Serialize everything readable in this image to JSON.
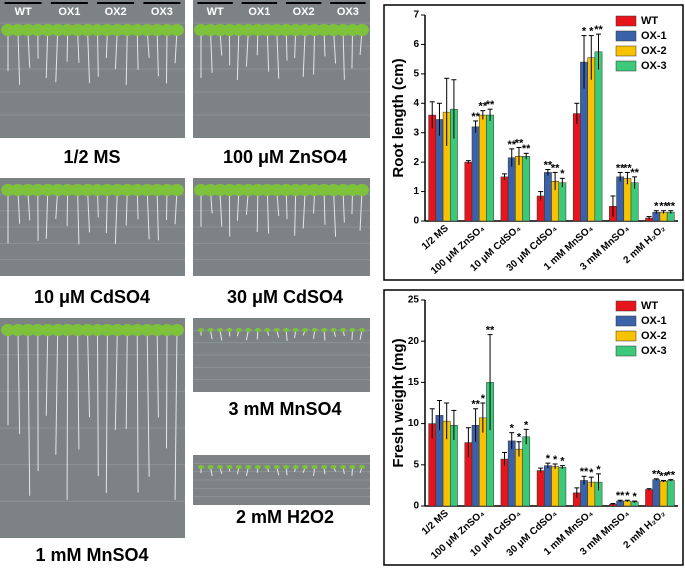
{
  "lane_labels": [
    "WT",
    "OX1",
    "OX2",
    "OX3"
  ],
  "photos": [
    {
      "label": "1/2 MS"
    },
    {
      "label": "100 μM ZnSO4"
    },
    {
      "label": "10 μM CdSO4"
    },
    {
      "label": "30 μM CdSO4"
    },
    {
      "label": "1 mM MnSO4"
    },
    {
      "label": "3 mM MnSO4"
    },
    {
      "label": "2 mM H2O2"
    }
  ],
  "chart_data": [
    {
      "type": "bar",
      "y_label": "Root length (cm)",
      "legend": "upper right",
      "categories": [
        "1/2 MS",
        "100 μM ZnSO₄",
        "10 μM CdSO₄",
        "30 μM CdSO₄",
        "1 mM MnSO₄",
        "3 mM MnSO₄",
        "2 mM H₂O₂"
      ],
      "ylim": [
        0,
        7
      ],
      "yticks": [
        0,
        1,
        2,
        3,
        4,
        5,
        6,
        7
      ],
      "series": [
        {
          "name": "WT",
          "color": "#e8141c",
          "values": [
            3.6,
            2.0,
            1.5,
            0.85,
            3.65,
            0.5,
            0.1
          ],
          "errors": [
            0.45,
            0.05,
            0.1,
            0.15,
            0.35,
            0.35,
            0.05
          ],
          "significance": [
            null,
            null,
            null,
            null,
            null,
            null,
            null
          ]
        },
        {
          "name": "OX-1",
          "color": "#3b62a8",
          "values": [
            3.45,
            3.2,
            2.15,
            1.65,
            5.4,
            1.5,
            0.3
          ],
          "errors": [
            0.55,
            0.2,
            0.3,
            0.1,
            0.9,
            0.15,
            0.05
          ],
          "significance": [
            null,
            "**",
            "**",
            "**",
            "*",
            "**",
            "*"
          ]
        },
        {
          "name": "OX-2",
          "color": "#f7c200",
          "values": [
            3.7,
            3.6,
            2.2,
            1.35,
            5.55,
            1.45,
            0.3
          ],
          "errors": [
            1.15,
            0.15,
            0.3,
            0.3,
            0.75,
            0.2,
            0.05
          ],
          "significance": [
            null,
            "**",
            "**",
            "**",
            "*",
            "**",
            "**"
          ]
        },
        {
          "name": "OX-3",
          "color": "#3dc97a",
          "values": [
            3.8,
            3.6,
            2.2,
            1.3,
            5.75,
            1.3,
            0.3
          ],
          "errors": [
            1.0,
            0.2,
            0.1,
            0.15,
            0.6,
            0.2,
            0.05
          ],
          "significance": [
            null,
            "**",
            "**",
            "*",
            "**",
            "**",
            "**"
          ]
        }
      ]
    },
    {
      "type": "bar",
      "y_label": "Fresh weight (mg)",
      "legend": "upper right",
      "categories": [
        "1/2 MS",
        "100 μM ZnSO₄",
        "10 μM CdSO₄",
        "30 μM CdSO₄",
        "1 mM MnSO₄",
        "3 mM MnSO₄",
        "2 mM H₂O₂"
      ],
      "ylim": [
        0,
        25
      ],
      "yticks": [
        0,
        5,
        10,
        15,
        20,
        25
      ],
      "series": [
        {
          "name": "WT",
          "color": "#e8141c",
          "values": [
            10,
            7.7,
            5.7,
            4.3,
            1.6,
            0.2,
            2.0
          ],
          "errors": [
            1.8,
            1.8,
            0.8,
            0.3,
            0.6,
            0.1,
            0.1
          ],
          "significance": [
            null,
            null,
            null,
            null,
            null,
            null,
            null
          ]
        },
        {
          "name": "OX-1",
          "color": "#3b62a8",
          "values": [
            11,
            9.8,
            7.9,
            4.9,
            3.1,
            0.6,
            3.2
          ],
          "errors": [
            1.8,
            2.0,
            1.0,
            0.3,
            0.5,
            0.1,
            0.1
          ],
          "significance": [
            null,
            "**",
            "*",
            "*",
            "**",
            "**",
            "**"
          ]
        },
        {
          "name": "OX-2",
          "color": "#f7c200",
          "values": [
            10.3,
            10.7,
            6.9,
            4.8,
            2.9,
            0.6,
            3.0
          ],
          "errors": [
            2.2,
            1.8,
            0.9,
            0.3,
            0.6,
            0.1,
            0.1
          ],
          "significance": [
            null,
            "*",
            "*",
            "*",
            "*",
            "*",
            "**"
          ]
        },
        {
          "name": "OX-3",
          "color": "#3dc97a",
          "values": [
            9.8,
            15.0,
            8.4,
            4.7,
            2.9,
            0.5,
            3.1
          ],
          "errors": [
            1.8,
            5.8,
            0.9,
            0.2,
            1.0,
            0.1,
            0.1
          ],
          "significance": [
            null,
            "**",
            "*",
            "*",
            "*",
            "*",
            "**"
          ]
        }
      ]
    }
  ]
}
